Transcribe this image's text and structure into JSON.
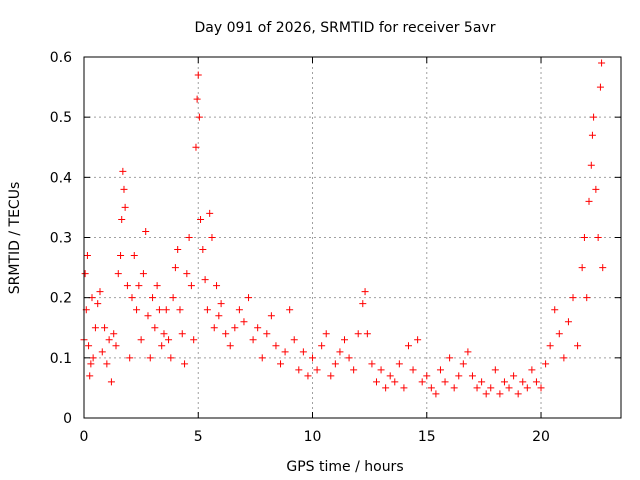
{
  "chart_data": {
    "type": "scatter",
    "title": "Day 091 of 2026, SRMTID for receiver 5avr",
    "xlabel": "GPS time / hours",
    "ylabel": "SRMTID / TECUs",
    "xlim": [
      0,
      23.5
    ],
    "ylim": [
      0,
      0.6
    ],
    "xticks": [
      0,
      5,
      10,
      15,
      20
    ],
    "yticks": [
      0,
      0.1,
      0.2,
      0.3,
      0.4,
      0.5,
      0.6
    ],
    "grid": true,
    "marker": "+",
    "color": "#ff0000",
    "series": [
      {
        "name": "SRMTID",
        "points": [
          [
            0.0,
            0.13
          ],
          [
            0.05,
            0.24
          ],
          [
            0.1,
            0.18
          ],
          [
            0.15,
            0.27
          ],
          [
            0.2,
            0.12
          ],
          [
            0.25,
            0.07
          ],
          [
            0.3,
            0.09
          ],
          [
            0.35,
            0.2
          ],
          [
            0.4,
            0.1
          ],
          [
            0.5,
            0.15
          ],
          [
            0.6,
            0.19
          ],
          [
            0.7,
            0.21
          ],
          [
            0.8,
            0.11
          ],
          [
            0.9,
            0.15
          ],
          [
            1.0,
            0.09
          ],
          [
            1.1,
            0.13
          ],
          [
            1.2,
            0.06
          ],
          [
            1.3,
            0.14
          ],
          [
            1.4,
            0.12
          ],
          [
            1.5,
            0.24
          ],
          [
            1.6,
            0.27
          ],
          [
            1.65,
            0.33
          ],
          [
            1.7,
            0.41
          ],
          [
            1.75,
            0.38
          ],
          [
            1.8,
            0.35
          ],
          [
            1.9,
            0.22
          ],
          [
            2.0,
            0.1
          ],
          [
            2.1,
            0.2
          ],
          [
            2.2,
            0.27
          ],
          [
            2.3,
            0.18
          ],
          [
            2.4,
            0.22
          ],
          [
            2.5,
            0.13
          ],
          [
            2.6,
            0.24
          ],
          [
            2.7,
            0.31
          ],
          [
            2.8,
            0.17
          ],
          [
            2.9,
            0.1
          ],
          [
            3.0,
            0.2
          ],
          [
            3.1,
            0.15
          ],
          [
            3.2,
            0.22
          ],
          [
            3.3,
            0.18
          ],
          [
            3.4,
            0.12
          ],
          [
            3.5,
            0.14
          ],
          [
            3.6,
            0.18
          ],
          [
            3.7,
            0.13
          ],
          [
            3.8,
            0.1
          ],
          [
            3.9,
            0.2
          ],
          [
            4.0,
            0.25
          ],
          [
            4.1,
            0.28
          ],
          [
            4.2,
            0.18
          ],
          [
            4.3,
            0.14
          ],
          [
            4.4,
            0.09
          ],
          [
            4.5,
            0.24
          ],
          [
            4.6,
            0.3
          ],
          [
            4.7,
            0.22
          ],
          [
            4.8,
            0.13
          ],
          [
            4.9,
            0.45
          ],
          [
            4.95,
            0.53
          ],
          [
            5.0,
            0.57
          ],
          [
            5.05,
            0.5
          ],
          [
            5.1,
            0.33
          ],
          [
            5.2,
            0.28
          ],
          [
            5.3,
            0.23
          ],
          [
            5.4,
            0.18
          ],
          [
            5.5,
            0.34
          ],
          [
            5.6,
            0.3
          ],
          [
            5.7,
            0.15
          ],
          [
            5.8,
            0.22
          ],
          [
            5.9,
            0.17
          ],
          [
            6.0,
            0.19
          ],
          [
            6.2,
            0.14
          ],
          [
            6.4,
            0.12
          ],
          [
            6.6,
            0.15
          ],
          [
            6.8,
            0.18
          ],
          [
            7.0,
            0.16
          ],
          [
            7.2,
            0.2
          ],
          [
            7.4,
            0.13
          ],
          [
            7.6,
            0.15
          ],
          [
            7.8,
            0.1
          ],
          [
            8.0,
            0.14
          ],
          [
            8.2,
            0.17
          ],
          [
            8.4,
            0.12
          ],
          [
            8.6,
            0.09
          ],
          [
            8.8,
            0.11
          ],
          [
            9.0,
            0.18
          ],
          [
            9.2,
            0.13
          ],
          [
            9.4,
            0.08
          ],
          [
            9.6,
            0.11
          ],
          [
            9.8,
            0.07
          ],
          [
            10.0,
            0.1
          ],
          [
            10.2,
            0.08
          ],
          [
            10.4,
            0.12
          ],
          [
            10.6,
            0.14
          ],
          [
            10.8,
            0.07
          ],
          [
            11.0,
            0.09
          ],
          [
            11.2,
            0.11
          ],
          [
            11.4,
            0.13
          ],
          [
            11.6,
            0.1
          ],
          [
            11.8,
            0.08
          ],
          [
            12.0,
            0.14
          ],
          [
            12.2,
            0.19
          ],
          [
            12.3,
            0.21
          ],
          [
            12.4,
            0.14
          ],
          [
            12.6,
            0.09
          ],
          [
            12.8,
            0.06
          ],
          [
            13.0,
            0.08
          ],
          [
            13.2,
            0.05
          ],
          [
            13.4,
            0.07
          ],
          [
            13.6,
            0.06
          ],
          [
            13.8,
            0.09
          ],
          [
            14.0,
            0.05
          ],
          [
            14.2,
            0.12
          ],
          [
            14.4,
            0.08
          ],
          [
            14.6,
            0.13
          ],
          [
            14.8,
            0.06
          ],
          [
            15.0,
            0.07
          ],
          [
            15.2,
            0.05
          ],
          [
            15.4,
            0.04
          ],
          [
            15.6,
            0.08
          ],
          [
            15.8,
            0.06
          ],
          [
            16.0,
            0.1
          ],
          [
            16.2,
            0.05
          ],
          [
            16.4,
            0.07
          ],
          [
            16.6,
            0.09
          ],
          [
            16.8,
            0.11
          ],
          [
            17.0,
            0.07
          ],
          [
            17.2,
            0.05
          ],
          [
            17.4,
            0.06
          ],
          [
            17.6,
            0.04
          ],
          [
            17.8,
            0.05
          ],
          [
            18.0,
            0.08
          ],
          [
            18.2,
            0.04
          ],
          [
            18.4,
            0.06
          ],
          [
            18.6,
            0.05
          ],
          [
            18.8,
            0.07
          ],
          [
            19.0,
            0.04
          ],
          [
            19.2,
            0.06
          ],
          [
            19.4,
            0.05
          ],
          [
            19.6,
            0.08
          ],
          [
            19.8,
            0.06
          ],
          [
            20.0,
            0.05
          ],
          [
            20.2,
            0.09
          ],
          [
            20.4,
            0.12
          ],
          [
            20.6,
            0.18
          ],
          [
            20.8,
            0.14
          ],
          [
            21.0,
            0.1
          ],
          [
            21.2,
            0.16
          ],
          [
            21.4,
            0.2
          ],
          [
            21.6,
            0.12
          ],
          [
            21.8,
            0.25
          ],
          [
            21.9,
            0.3
          ],
          [
            22.0,
            0.2
          ],
          [
            22.1,
            0.36
          ],
          [
            22.2,
            0.42
          ],
          [
            22.25,
            0.47
          ],
          [
            22.3,
            0.5
          ],
          [
            22.4,
            0.38
          ],
          [
            22.5,
            0.3
          ],
          [
            22.6,
            0.55
          ],
          [
            22.65,
            0.59
          ],
          [
            22.7,
            0.25
          ]
        ]
      }
    ]
  }
}
